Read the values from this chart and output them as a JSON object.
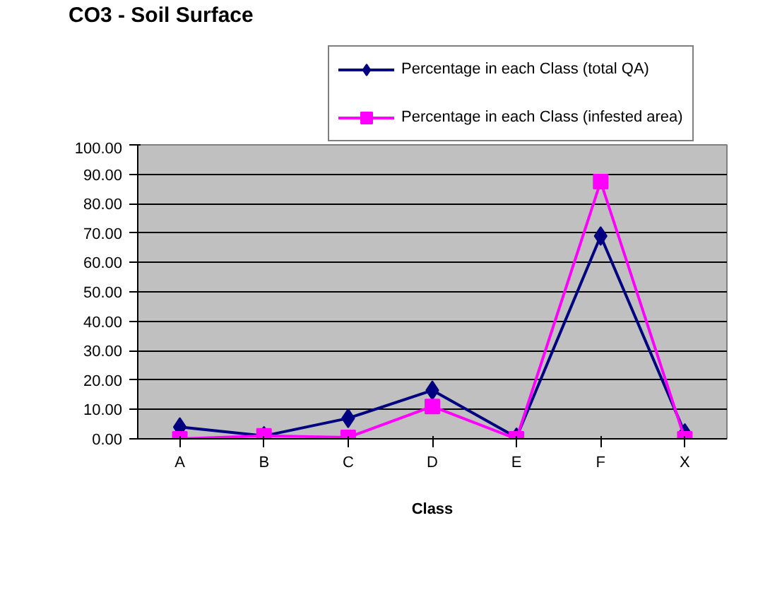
{
  "chart_data": {
    "type": "line",
    "title": "CO3 - Soil Surface",
    "xlabel": "Class",
    "categories": [
      "A",
      "B",
      "C",
      "D",
      "E",
      "F",
      "X"
    ],
    "series": [
      {
        "name": "Percentage in each Class (total QA)",
        "color": "#000080",
        "marker": "diamond",
        "values": [
          4,
          1,
          7,
          16.5,
          0.5,
          69,
          2
        ]
      },
      {
        "name": "Percentage in each Class (infested area)",
        "color": "#ff00ff",
        "marker": "square",
        "values": [
          0,
          1,
          0.5,
          11,
          0,
          87.5,
          0
        ]
      }
    ],
    "ylim": [
      0,
      100
    ],
    "yticks": [
      {
        "value": 0,
        "label": "0.00"
      },
      {
        "value": 10,
        "label": "10.00"
      },
      {
        "value": 20,
        "label": "20.00"
      },
      {
        "value": 30,
        "label": "30.00"
      },
      {
        "value": 40,
        "label": "40.00"
      },
      {
        "value": 50,
        "label": "50.00"
      },
      {
        "value": 60,
        "label": "60.00"
      },
      {
        "value": 70,
        "label": "70.00"
      },
      {
        "value": 80,
        "label": "80.00"
      },
      {
        "value": 90,
        "label": "90.00"
      },
      {
        "value": 100,
        "label": "100.00"
      }
    ],
    "grid": "y",
    "legend": "top right",
    "line_style": "solid"
  }
}
